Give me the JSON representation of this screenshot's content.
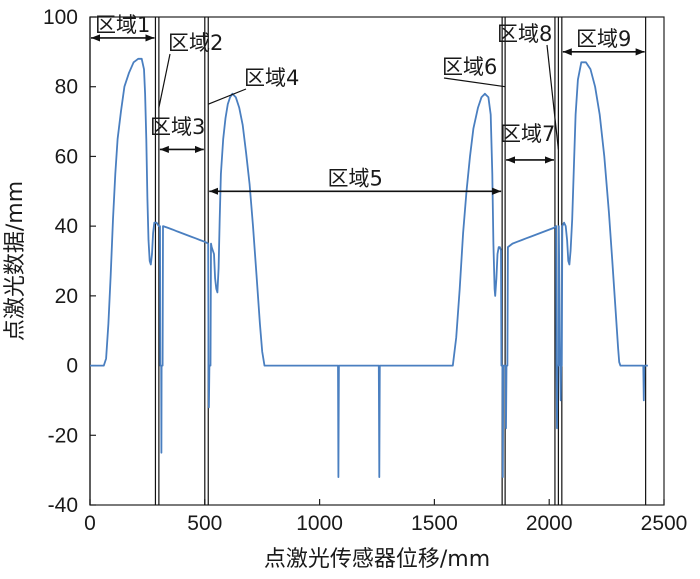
{
  "chart_data": {
    "type": "line",
    "title": "",
    "xlabel": "点激光传感器位移/mm",
    "ylabel": "点激光数据/mm",
    "xlim": [
      0,
      2500
    ],
    "ylim": [
      -40,
      100
    ],
    "xticks": [
      0,
      500,
      1000,
      1500,
      2000,
      2500
    ],
    "yticks": [
      -40,
      -20,
      0,
      20,
      40,
      60,
      80,
      100
    ],
    "grid": false,
    "line_color": "#4a7fc0",
    "series": [
      {
        "values": [
          [
            0,
            0
          ],
          [
            60,
            0
          ],
          [
            70,
            2
          ],
          [
            80,
            12
          ],
          [
            90,
            26
          ],
          [
            100,
            42
          ],
          [
            110,
            55
          ],
          [
            120,
            65
          ],
          [
            135,
            73
          ],
          [
            150,
            80
          ],
          [
            170,
            84
          ],
          [
            190,
            87
          ],
          [
            210,
            88
          ],
          [
            225,
            88
          ],
          [
            235,
            85
          ],
          [
            240,
            78
          ],
          [
            245,
            65
          ],
          [
            250,
            48
          ],
          [
            255,
            36
          ],
          [
            260,
            30
          ],
          [
            265,
            29
          ],
          [
            270,
            32
          ],
          [
            275,
            38
          ],
          [
            280,
            41
          ],
          [
            290,
            41
          ],
          [
            300,
            40
          ],
          [
            305,
            40
          ],
          [
            306,
            0
          ],
          [
            310,
            0
          ],
          [
            311,
            -25
          ],
          [
            312,
            0
          ],
          [
            316,
            0
          ],
          [
            318,
            40
          ],
          [
            340,
            39.5
          ],
          [
            360,
            39
          ],
          [
            380,
            38.5
          ],
          [
            400,
            38
          ],
          [
            420,
            37.5
          ],
          [
            440,
            37
          ],
          [
            460,
            36.5
          ],
          [
            480,
            36
          ],
          [
            500,
            35.5
          ],
          [
            515,
            35
          ],
          [
            516,
            0
          ],
          [
            518,
            -12
          ],
          [
            520,
            0
          ],
          [
            525,
            0
          ],
          [
            527,
            35
          ],
          [
            530,
            34
          ],
          [
            535,
            33
          ],
          [
            540,
            32
          ],
          [
            545,
            25
          ],
          [
            550,
            22
          ],
          [
            555,
            21
          ],
          [
            560,
            28
          ],
          [
            565,
            42
          ],
          [
            570,
            55
          ],
          [
            580,
            65
          ],
          [
            590,
            71
          ],
          [
            600,
            75
          ],
          [
            610,
            77
          ],
          [
            620,
            78
          ],
          [
            635,
            77
          ],
          [
            650,
            74
          ],
          [
            665,
            69
          ],
          [
            680,
            61
          ],
          [
            695,
            52
          ],
          [
            710,
            40
          ],
          [
            725,
            26
          ],
          [
            740,
            12
          ],
          [
            750,
            4
          ],
          [
            760,
            0
          ],
          [
            1080,
            0
          ],
          [
            1082,
            -32
          ],
          [
            1084,
            0
          ],
          [
            1258,
            0
          ],
          [
            1260,
            -32
          ],
          [
            1262,
            0
          ],
          [
            1580,
            0
          ],
          [
            1595,
            8
          ],
          [
            1610,
            22
          ],
          [
            1625,
            38
          ],
          [
            1640,
            50
          ],
          [
            1655,
            60
          ],
          [
            1670,
            68
          ],
          [
            1690,
            74
          ],
          [
            1705,
            77
          ],
          [
            1720,
            78
          ],
          [
            1735,
            77
          ],
          [
            1745,
            72
          ],
          [
            1752,
            55
          ],
          [
            1757,
            35
          ],
          [
            1762,
            22
          ],
          [
            1765,
            20
          ],
          [
            1770,
            25
          ],
          [
            1775,
            32
          ],
          [
            1780,
            34
          ],
          [
            1785,
            34
          ],
          [
            1790,
            33
          ],
          [
            1792,
            0
          ],
          [
            1796,
            0
          ],
          [
            1798,
            -32
          ],
          [
            1800,
            0
          ],
          [
            1810,
            0
          ],
          [
            1812,
            -18
          ],
          [
            1814,
            0
          ],
          [
            1818,
            0
          ],
          [
            1820,
            34
          ],
          [
            1840,
            35
          ],
          [
            1860,
            35.5
          ],
          [
            1880,
            36
          ],
          [
            1900,
            36.5
          ],
          [
            1920,
            37
          ],
          [
            1940,
            37.5
          ],
          [
            1960,
            38
          ],
          [
            1980,
            38.5
          ],
          [
            2000,
            39
          ],
          [
            2020,
            39.5
          ],
          [
            2030,
            40
          ],
          [
            2032,
            0
          ],
          [
            2034,
            -18
          ],
          [
            2036,
            0
          ],
          [
            2040,
            0
          ],
          [
            2042,
            40
          ],
          [
            2048,
            0
          ],
          [
            2050,
            -10
          ],
          [
            2052,
            0
          ],
          [
            2055,
            0
          ],
          [
            2057,
            40
          ],
          [
            2065,
            41
          ],
          [
            2072,
            40
          ],
          [
            2078,
            36
          ],
          [
            2083,
            30
          ],
          [
            2088,
            29
          ],
          [
            2093,
            33
          ],
          [
            2100,
            42
          ],
          [
            2108,
            58
          ],
          [
            2115,
            72
          ],
          [
            2125,
            82
          ],
          [
            2140,
            87
          ],
          [
            2160,
            87
          ],
          [
            2180,
            85
          ],
          [
            2200,
            80
          ],
          [
            2220,
            72
          ],
          [
            2240,
            60
          ],
          [
            2260,
            44
          ],
          [
            2275,
            30
          ],
          [
            2290,
            15
          ],
          [
            2300,
            5
          ],
          [
            2305,
            1
          ],
          [
            2310,
            0
          ],
          [
            2410,
            0
          ],
          [
            2412,
            -10
          ],
          [
            2414,
            0
          ],
          [
            2430,
            0
          ]
        ]
      }
    ],
    "vlines": [
      0,
      285,
      300,
      500,
      515,
      1795,
      1808,
      2025,
      2040,
      2055,
      2420
    ],
    "regions": [
      {
        "label": "区域1",
        "from": 0,
        "to": 285,
        "y": 94,
        "arrow": "both"
      },
      {
        "label": "区域2",
        "leader_to": 300,
        "leader_y": 74
      },
      {
        "label": "区域3",
        "from": 300,
        "to": 500,
        "y": 62,
        "arrow": "both"
      },
      {
        "label": "区域4",
        "leader_to": 515,
        "leader_y": 75
      },
      {
        "label": "区域5",
        "from": 515,
        "to": 1795,
        "y": 50,
        "arrow": "both"
      },
      {
        "label": "区域6",
        "leader_to": 1808,
        "leader_y": 80
      },
      {
        "label": "区域7",
        "from": 1808,
        "to": 2025,
        "y": 59,
        "arrow": "both"
      },
      {
        "label": "区域8",
        "leader_to": 2040,
        "leader_y": 62
      },
      {
        "label": "区域9",
        "from": 2055,
        "to": 2420,
        "y": 90,
        "arrow": "both"
      }
    ]
  }
}
